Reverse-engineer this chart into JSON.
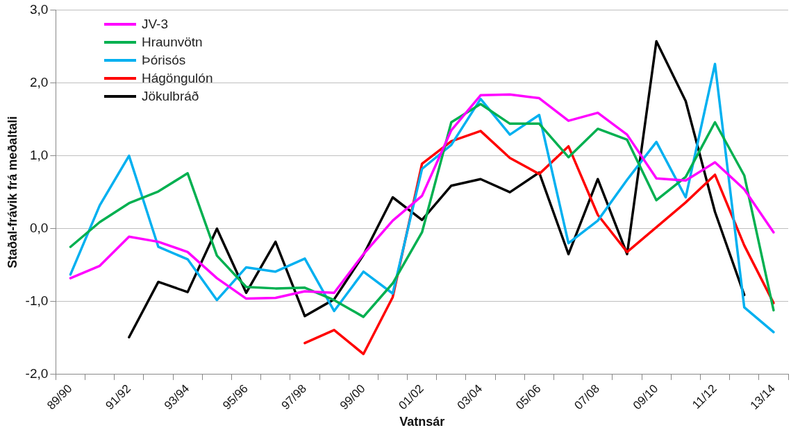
{
  "chart_data": {
    "type": "line",
    "xlabel": "Vatnsár",
    "ylabel": "Staðal-frávik frá meðaltali",
    "categories": [
      "89/90",
      null,
      "91/92",
      null,
      "93/94",
      null,
      "95/96",
      null,
      "97/98",
      null,
      "99/00",
      null,
      "01/02",
      null,
      "03/04",
      null,
      "05/06",
      null,
      "07/08",
      null,
      "09/10",
      null,
      "11/12",
      null,
      "13/14"
    ],
    "series": [
      {
        "name": "JV-3",
        "color": "#ff00ff",
        "values": [
          -0.68,
          -0.51,
          -0.11,
          -0.18,
          -0.32,
          -0.68,
          -0.96,
          -0.95,
          -0.86,
          -0.88,
          -0.35,
          0.11,
          0.45,
          1.35,
          1.83,
          1.84,
          1.79,
          1.48,
          1.59,
          1.29,
          0.69,
          0.66,
          0.91,
          0.54,
          -0.05
        ]
      },
      {
        "name": "Hraunvötn",
        "color": "#00b050",
        "values": [
          -0.25,
          0.09,
          0.35,
          0.51,
          0.76,
          -0.37,
          -0.8,
          -0.82,
          -0.81,
          -0.98,
          -1.21,
          -0.75,
          -0.05,
          1.46,
          1.71,
          1.44,
          1.44,
          0.98,
          1.37,
          1.22,
          0.39,
          0.71,
          1.46,
          0.73,
          -1.12
        ]
      },
      {
        "name": "Þórisós",
        "color": "#00b0f0",
        "values": [
          -0.63,
          0.32,
          1.0,
          -0.25,
          -0.42,
          -0.98,
          -0.53,
          -0.59,
          -0.41,
          -1.13,
          -0.59,
          -0.89,
          0.82,
          1.15,
          1.78,
          1.29,
          1.56,
          -0.2,
          0.11,
          0.67,
          1.19,
          0.43,
          2.26,
          -1.08,
          -1.42
        ]
      },
      {
        "name": "Hágöngulón",
        "color": "#ff0000",
        "values": [
          null,
          null,
          null,
          null,
          null,
          null,
          null,
          null,
          -1.57,
          -1.39,
          -1.72,
          -0.94,
          0.89,
          1.2,
          1.34,
          0.97,
          0.75,
          1.13,
          0.19,
          -0.32,
          0.02,
          0.36,
          0.74,
          -0.23,
          -1.02
        ]
      },
      {
        "name": "Jökulbráð",
        "color": "#000000",
        "values": [
          null,
          null,
          -1.49,
          -0.73,
          -0.87,
          0.0,
          -0.88,
          -0.18,
          -1.2,
          -0.97,
          -0.36,
          0.43,
          0.12,
          0.59,
          0.68,
          0.5,
          0.77,
          -0.35,
          0.68,
          -0.35,
          2.57,
          1.75,
          0.23,
          -0.91,
          null
        ]
      }
    ],
    "ylim": [
      -2,
      3
    ],
    "yticks": [
      {
        "value": -2,
        "label": "-2,0"
      },
      {
        "value": -1,
        "label": "-1,0"
      },
      {
        "value": 0,
        "label": "0,0"
      },
      {
        "value": 1,
        "label": "1,0"
      },
      {
        "value": 2,
        "label": "2,0"
      },
      {
        "value": 3,
        "label": "3,0"
      }
    ],
    "grid": "y",
    "legend": "top left",
    "marker": "none",
    "line_style": "solid"
  }
}
